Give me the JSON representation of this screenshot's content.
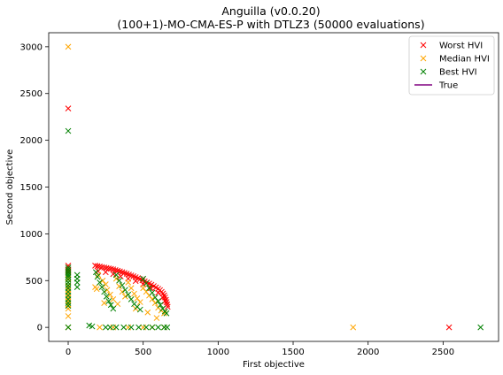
{
  "chart_data": {
    "type": "scatter",
    "title": "Anguilla (v0.0.20)",
    "subtitle": "(100+1)-MO-CMA-ES-P with DTLZ3 (50000 evaluations)",
    "xlabel": "First objective",
    "ylabel": "Second objective",
    "xlim": [
      -130,
      2870
    ],
    "ylim": [
      -150,
      3150
    ],
    "xticks": [
      "0",
      "500",
      "1000",
      "1500",
      "2000",
      "2500"
    ],
    "xtick_values": [
      0,
      500,
      1000,
      1500,
      2000,
      2500
    ],
    "yticks": [
      "0",
      "500",
      "1000",
      "1500",
      "2000",
      "2500",
      "3000"
    ],
    "ytick_values": [
      0,
      500,
      1000,
      1500,
      2000,
      2500,
      3000
    ],
    "grid": false,
    "legend_position": "top-right",
    "series": [
      {
        "name": "Worst HVI",
        "color": "#ff0000",
        "marker": "x",
        "points": [
          [
            0,
            2340
          ],
          [
            2540,
            0
          ],
          [
            0,
            660
          ],
          [
            0,
            640
          ],
          [
            0,
            615
          ],
          [
            0,
            590
          ],
          [
            180,
            660
          ],
          [
            195,
            655
          ],
          [
            210,
            650
          ],
          [
            225,
            645
          ],
          [
            240,
            640
          ],
          [
            255,
            635
          ],
          [
            270,
            630
          ],
          [
            285,
            625
          ],
          [
            300,
            620
          ],
          [
            315,
            612
          ],
          [
            330,
            605
          ],
          [
            345,
            598
          ],
          [
            360,
            590
          ],
          [
            375,
            582
          ],
          [
            390,
            573
          ],
          [
            405,
            564
          ],
          [
            420,
            555
          ],
          [
            435,
            546
          ],
          [
            450,
            536
          ],
          [
            465,
            526
          ],
          [
            480,
            515
          ],
          [
            495,
            504
          ],
          [
            510,
            492
          ],
          [
            525,
            480
          ],
          [
            540,
            468
          ],
          [
            555,
            455
          ],
          [
            570,
            441
          ],
          [
            585,
            427
          ],
          [
            600,
            412
          ],
          [
            612,
            398
          ],
          [
            623,
            380
          ],
          [
            632,
            362
          ],
          [
            640,
            342
          ],
          [
            646,
            320
          ],
          [
            652,
            295
          ],
          [
            656,
            270
          ],
          [
            660,
            245
          ],
          [
            663,
            220
          ],
          [
            200,
            600
          ],
          [
            250,
            590
          ],
          [
            300,
            570
          ],
          [
            350,
            545
          ],
          [
            400,
            520
          ],
          [
            450,
            495
          ],
          [
            500,
            460
          ],
          [
            550,
            420
          ],
          [
            600,
            370
          ],
          [
            630,
            320
          ],
          [
            645,
            280
          ]
        ]
      },
      {
        "name": "Median HVI",
        "color": "#ffa500",
        "marker": "x",
        "points": [
          [
            0,
            3000
          ],
          [
            1900,
            0
          ],
          [
            0,
            600
          ],
          [
            0,
            560
          ],
          [
            0,
            520
          ],
          [
            0,
            480
          ],
          [
            0,
            440
          ],
          [
            0,
            400
          ],
          [
            0,
            360
          ],
          [
            0,
            320
          ],
          [
            0,
            280
          ],
          [
            0,
            240
          ],
          [
            0,
            200
          ],
          [
            0,
            120
          ],
          [
            0,
            0
          ],
          [
            180,
            430
          ],
          [
            190,
            410
          ],
          [
            200,
            560
          ],
          [
            210,
            0
          ],
          [
            230,
            500
          ],
          [
            250,
            460
          ],
          [
            260,
            400
          ],
          [
            280,
            350
          ],
          [
            300,
            300
          ],
          [
            320,
            520
          ],
          [
            340,
            440
          ],
          [
            360,
            380
          ],
          [
            380,
            330
          ],
          [
            400,
            480
          ],
          [
            420,
            420
          ],
          [
            440,
            360
          ],
          [
            460,
            310
          ],
          [
            480,
            270
          ],
          [
            500,
            420
          ],
          [
            520,
            380
          ],
          [
            540,
            340
          ],
          [
            560,
            300
          ],
          [
            580,
            260
          ],
          [
            600,
            210
          ],
          [
            620,
            180
          ],
          [
            640,
            150
          ],
          [
            300,
            0
          ],
          [
            400,
            0
          ],
          [
            500,
            0
          ],
          [
            560,
            0
          ],
          [
            640,
            0
          ],
          [
            240,
            260
          ],
          [
            330,
            250
          ],
          [
            450,
            200
          ],
          [
            530,
            160
          ],
          [
            590,
            100
          ]
        ]
      },
      {
        "name": "Best HVI",
        "color": "#008000",
        "marker": "x",
        "points": [
          [
            0,
            2100
          ],
          [
            2750,
            0
          ],
          [
            0,
            640
          ],
          [
            0,
            620
          ],
          [
            0,
            600
          ],
          [
            0,
            580
          ],
          [
            0,
            560
          ],
          [
            0,
            540
          ],
          [
            0,
            510
          ],
          [
            0,
            480
          ],
          [
            0,
            450
          ],
          [
            0,
            420
          ],
          [
            0,
            380
          ],
          [
            0,
            340
          ],
          [
            0,
            300
          ],
          [
            0,
            260
          ],
          [
            0,
            230
          ],
          [
            0,
            0
          ],
          [
            60,
            560
          ],
          [
            60,
            520
          ],
          [
            60,
            480
          ],
          [
            60,
            430
          ],
          [
            140,
            20
          ],
          [
            160,
            10
          ],
          [
            185,
            590
          ],
          [
            195,
            540
          ],
          [
            210,
            480
          ],
          [
            225,
            430
          ],
          [
            240,
            380
          ],
          [
            255,
            330
          ],
          [
            270,
            280
          ],
          [
            285,
            240
          ],
          [
            300,
            200
          ],
          [
            320,
            560
          ],
          [
            340,
            500
          ],
          [
            360,
            450
          ],
          [
            380,
            400
          ],
          [
            400,
            350
          ],
          [
            420,
            300
          ],
          [
            440,
            250
          ],
          [
            460,
            220
          ],
          [
            480,
            190
          ],
          [
            500,
            520
          ],
          [
            520,
            470
          ],
          [
            540,
            420
          ],
          [
            560,
            370
          ],
          [
            580,
            320
          ],
          [
            600,
            280
          ],
          [
            615,
            240
          ],
          [
            630,
            200
          ],
          [
            645,
            170
          ],
          [
            655,
            150
          ],
          [
            250,
            0
          ],
          [
            280,
            0
          ],
          [
            320,
            0
          ],
          [
            370,
            0
          ],
          [
            420,
            0
          ],
          [
            470,
            0
          ],
          [
            520,
            0
          ],
          [
            560,
            0
          ],
          [
            600,
            0
          ],
          [
            640,
            0
          ],
          [
            660,
            0
          ]
        ]
      },
      {
        "name": "True",
        "color": "#800080",
        "line": true,
        "points": []
      }
    ]
  }
}
